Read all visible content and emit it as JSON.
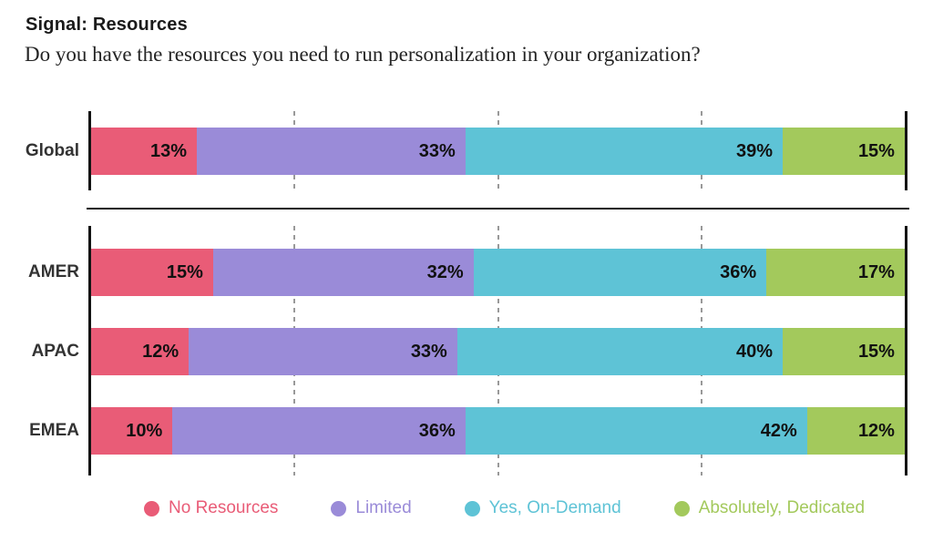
{
  "header": {
    "title": "Signal: Resources",
    "subtitle": "Do you have the resources you need to run personalization in your organization?"
  },
  "chart_data": {
    "type": "bar",
    "orientation": "horizontal",
    "stacked": true,
    "value_unit": "%",
    "xlim": [
      0,
      100
    ],
    "gridlines_pct": [
      25,
      50,
      75
    ],
    "grid_style": "dashed-vertical",
    "legend_position": "bottom",
    "categories": [
      "Global",
      "AMER",
      "APAC",
      "EMEA"
    ],
    "row_groups": [
      [
        0
      ],
      [
        1,
        2,
        3
      ]
    ],
    "series": [
      {
        "name": "No Resources",
        "color": "#E95C77",
        "values": [
          13,
          15,
          12,
          10
        ]
      },
      {
        "name": "Limited",
        "color": "#9A8BD8",
        "values": [
          33,
          32,
          33,
          36
        ]
      },
      {
        "name": "Yes, On-Demand",
        "color": "#5EC3D6",
        "values": [
          39,
          36,
          40,
          42
        ]
      },
      {
        "name": "Absolutely, Dedicated",
        "color": "#A3C95C",
        "values": [
          15,
          17,
          15,
          12
        ]
      }
    ],
    "colors": {
      "axis": "#141414",
      "gridline": "#999999",
      "value_label": "#111111",
      "category_label": "#333333"
    }
  }
}
